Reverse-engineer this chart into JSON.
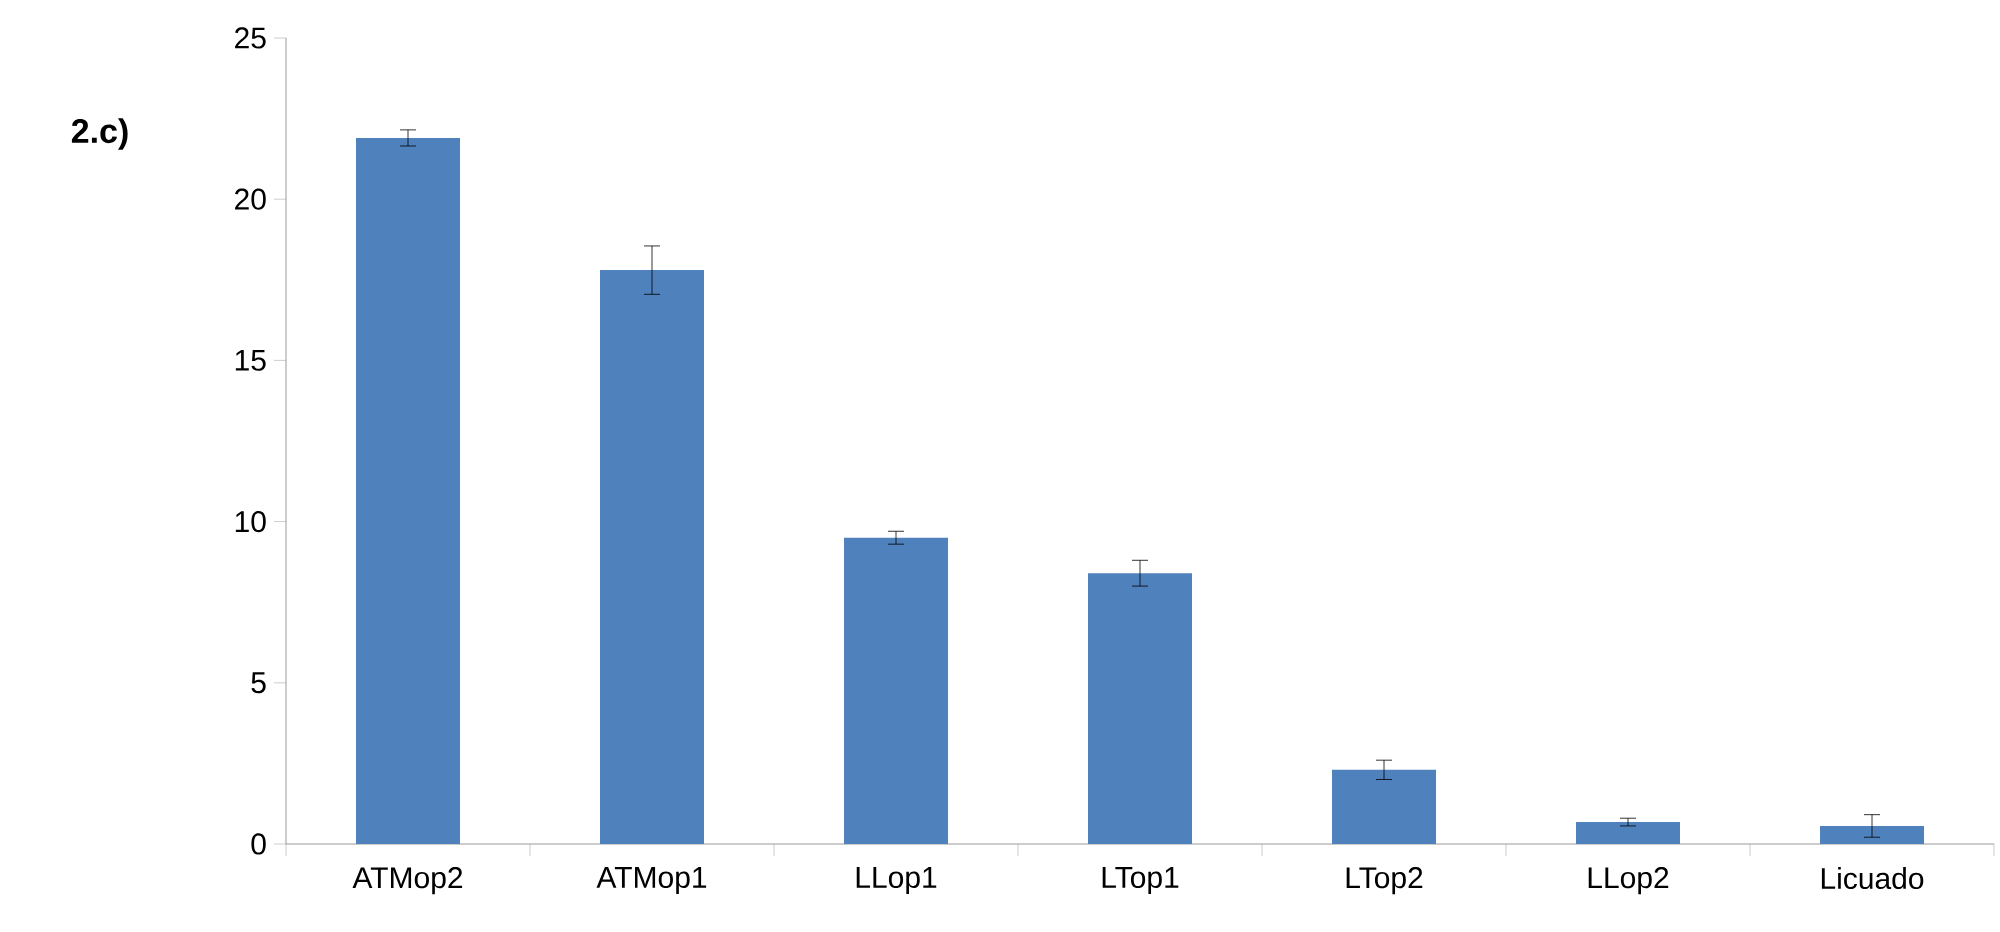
{
  "chart_data": {
    "type": "bar",
    "title": "2.c)",
    "categories": [
      "ATMop2",
      "ATMop1",
      "LLop1",
      "LTop1",
      "LTop2",
      "LLop2",
      "Licuado"
    ],
    "values": [
      21.9,
      17.8,
      9.5,
      8.4,
      2.3,
      0.68,
      0.56
    ],
    "errors": [
      0.25,
      0.75,
      0.2,
      0.4,
      0.3,
      0.12,
      0.35
    ],
    "color": "#4f81bd",
    "ylim": [
      0,
      25
    ],
    "yticks": [
      0,
      5,
      10,
      15,
      20,
      25
    ],
    "grid": false
  }
}
